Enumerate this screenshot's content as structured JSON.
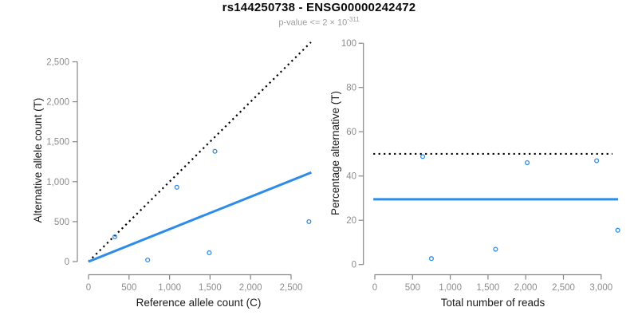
{
  "header": {
    "title": "rs144250738 - ENSG00000242472",
    "pvalue_base": "p-value <= 2 × 10",
    "pvalue_exponent": "-311"
  },
  "colors": {
    "accent_blue": "#2d8ce8",
    "line_black": "#000000",
    "axis_gray": "#868686",
    "tick_label_gray": "#8c8c8c",
    "subtitle_gray": "#9d9d9d"
  },
  "chart_data": [
    {
      "type": "scatter",
      "name": "allele-counts",
      "title": "",
      "xlabel": "Reference allele count (C)",
      "ylabel": "Alternative allele count (T)",
      "xlim": [
        0,
        2750
      ],
      "ylim": [
        0,
        2750
      ],
      "xticks": [
        0,
        500,
        1000,
        1500,
        2000,
        2500
      ],
      "yticks": [
        0,
        500,
        1000,
        1500,
        2000,
        2500
      ],
      "grid": false,
      "legend": null,
      "points": [
        [
          325,
          310
        ],
        [
          730,
          20
        ],
        [
          1090,
          930
        ],
        [
          1490,
          110
        ],
        [
          1560,
          1380
        ],
        [
          2720,
          500
        ]
      ],
      "lines": [
        {
          "name": "identity-line",
          "style": "dotted",
          "color": "#000000",
          "x1": 0,
          "y1": 0,
          "x2": 2745,
          "y2": 2745
        },
        {
          "name": "fit-line",
          "style": "solid",
          "color": "#2d8ce8",
          "x1": 0,
          "y1": 0,
          "x2": 2750,
          "y2": 1115
        }
      ]
    },
    {
      "type": "scatter",
      "name": "percentage-alternative",
      "title": "",
      "xlabel": "Total number of reads",
      "ylabel": "Percentage alternative (T)",
      "xlim": [
        0,
        3250
      ],
      "ylim": [
        0,
        100
      ],
      "xticks": [
        0,
        500,
        1000,
        1500,
        2000,
        2500,
        3000
      ],
      "yticks": [
        0,
        20,
        40,
        60,
        80,
        100
      ],
      "grid": false,
      "legend": null,
      "points": [
        [
          635,
          48.8
        ],
        [
          750,
          2.7
        ],
        [
          1600,
          6.9
        ],
        [
          2020,
          46.0
        ],
        [
          2940,
          46.9
        ],
        [
          3220,
          15.5
        ]
      ],
      "lines": [
        {
          "name": "threshold-50pct-line",
          "style": "dotted",
          "color": "#000000",
          "x1": -20,
          "y1": 50,
          "x2": 3150,
          "y2": 50
        },
        {
          "name": "mean-percentage-line",
          "style": "solid",
          "color": "#2d8ce8",
          "x1": -20,
          "y1": 29.5,
          "x2": 3225,
          "y2": 29.5
        }
      ]
    }
  ]
}
